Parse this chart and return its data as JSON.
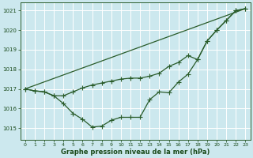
{
  "background_color": "#cce8ee",
  "grid_color": "#ffffff",
  "line_color": "#2a5c2a",
  "text_color": "#1a4a1a",
  "xlabel": "Graphe pression niveau de la mer (hPa)",
  "ylim": [
    1014.4,
    1021.4
  ],
  "xlim": [
    -0.5,
    23.5
  ],
  "yticks": [
    1015,
    1016,
    1017,
    1018,
    1019,
    1020,
    1021
  ],
  "xticks": [
    0,
    1,
    2,
    3,
    4,
    5,
    6,
    7,
    8,
    9,
    10,
    11,
    12,
    13,
    14,
    15,
    16,
    17,
    18,
    19,
    20,
    21,
    22,
    23
  ],
  "series_dip": {
    "x": [
      0,
      1,
      2,
      3,
      4,
      5,
      6,
      7,
      8,
      9,
      10,
      11,
      12,
      13,
      14,
      15,
      16,
      17,
      18,
      19,
      20,
      21,
      22,
      23
    ],
    "y": [
      1017.0,
      1016.9,
      1016.85,
      1016.65,
      1016.25,
      1015.75,
      1015.45,
      1015.05,
      1015.1,
      1015.4,
      1015.55,
      1015.55,
      1015.55,
      1016.45,
      1016.85,
      1016.8,
      1017.35,
      1017.75,
      1018.5,
      1019.45,
      1020.0,
      1020.5,
      1021.0,
      1021.1
    ]
  },
  "series_mid": {
    "x": [
      0,
      1,
      2,
      3,
      4,
      5,
      6,
      7,
      8,
      9,
      10,
      11,
      12,
      13,
      14,
      15,
      16,
      17,
      18,
      19,
      20,
      21,
      22,
      23
    ],
    "y": [
      1017.0,
      1016.9,
      1016.85,
      1016.65,
      1016.65,
      1016.85,
      1017.05,
      1017.2,
      1017.3,
      1017.4,
      1017.5,
      1017.55,
      1017.55,
      1017.65,
      1017.8,
      1018.15,
      1018.35,
      1018.7,
      1018.5,
      1019.45,
      1020.0,
      1020.5,
      1021.0,
      1021.1
    ]
  },
  "series_straight": {
    "x": [
      0,
      23
    ],
    "y": [
      1017.0,
      1021.1
    ]
  }
}
